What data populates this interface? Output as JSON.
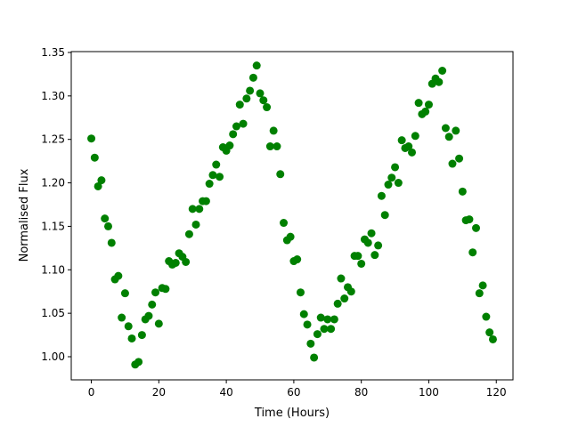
{
  "chart_data": {
    "type": "scatter",
    "title": "",
    "xlabel": "Time (Hours)",
    "ylabel": "Normalised Flux",
    "xlim": [
      -5.95,
      124.95
    ],
    "ylim": [
      0.9734,
      1.351
    ],
    "xticks": [
      0,
      20,
      40,
      60,
      80,
      100,
      120
    ],
    "xtick_labels": [
      "0",
      "20",
      "40",
      "60",
      "80",
      "100",
      "120"
    ],
    "yticks": [
      1.0,
      1.05,
      1.1,
      1.15,
      1.2,
      1.25,
      1.3,
      1.35
    ],
    "ytick_labels": [
      "1.00",
      "1.05",
      "1.10",
      "1.15",
      "1.20",
      "1.25",
      "1.30",
      "1.35"
    ],
    "grid": false,
    "marker_color": "#008000",
    "series": [
      {
        "x": [
          0,
          1,
          2,
          3,
          4,
          5,
          6,
          7,
          8,
          9,
          10,
          11,
          12,
          13,
          14,
          15,
          16,
          17,
          18,
          19,
          20,
          21,
          22,
          23,
          24,
          25,
          26,
          27,
          28,
          29,
          30,
          31,
          32,
          33,
          34,
          35,
          36,
          37,
          38,
          39,
          40,
          41,
          42,
          43,
          44,
          45,
          46,
          47,
          48,
          49,
          50,
          51,
          52,
          53,
          54,
          55,
          56,
          57,
          58,
          59,
          60,
          61,
          62,
          63,
          64,
          65,
          66,
          67,
          68,
          69,
          70,
          71,
          72,
          73,
          74,
          75,
          76,
          77,
          78,
          79,
          80,
          81,
          82,
          83,
          84,
          85,
          86,
          87,
          88,
          89,
          90,
          91,
          92,
          93,
          94,
          95,
          96,
          97,
          98,
          99,
          100,
          101,
          102,
          103,
          104,
          105,
          106,
          107,
          108,
          109,
          110,
          111,
          112,
          113,
          114,
          115,
          116,
          117,
          118,
          119
        ],
        "y": [
          1.251,
          1.229,
          1.196,
          1.203,
          1.159,
          1.15,
          1.131,
          1.089,
          1.093,
          1.045,
          1.073,
          1.035,
          1.021,
          0.991,
          0.994,
          1.025,
          1.043,
          1.047,
          1.06,
          1.074,
          1.038,
          1.079,
          1.078,
          1.11,
          1.106,
          1.108,
          1.119,
          1.115,
          1.109,
          1.141,
          1.17,
          1.152,
          1.17,
          1.179,
          1.179,
          1.199,
          1.209,
          1.221,
          1.207,
          1.241,
          1.237,
          1.243,
          1.256,
          1.265,
          1.29,
          1.268,
          1.297,
          1.306,
          1.321,
          1.335,
          1.303,
          1.295,
          1.287,
          1.242,
          1.26,
          1.242,
          1.21,
          1.154,
          1.134,
          1.138,
          1.11,
          1.112,
          1.074,
          1.049,
          1.037,
          1.015,
          0.999,
          1.026,
          1.045,
          1.032,
          1.043,
          1.032,
          1.043,
          1.061,
          1.09,
          1.067,
          1.08,
          1.075,
          1.116,
          1.116,
          1.107,
          1.135,
          1.131,
          1.142,
          1.117,
          1.128,
          1.185,
          1.163,
          1.198,
          1.206,
          1.218,
          1.2,
          1.249,
          1.24,
          1.242,
          1.235,
          1.254,
          1.292,
          1.279,
          1.282,
          1.29,
          1.314,
          1.32,
          1.316,
          1.329,
          1.263,
          1.253,
          1.222,
          1.26,
          1.228,
          1.19,
          1.157,
          1.158,
          1.12,
          1.148,
          1.073,
          1.082,
          1.046,
          1.028,
          1.02
        ]
      }
    ]
  }
}
